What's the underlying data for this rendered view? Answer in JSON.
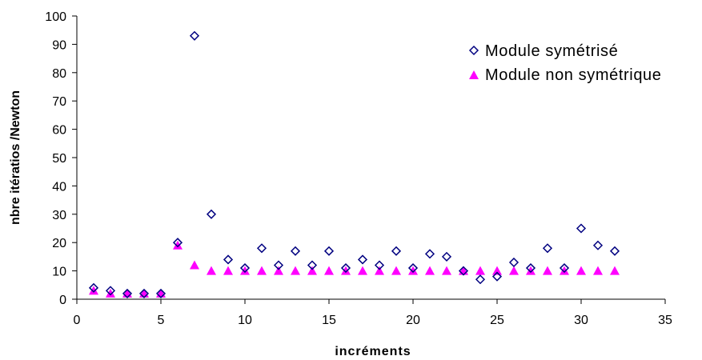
{
  "chart_data": {
    "type": "scatter",
    "title": "",
    "xlabel": "incréments",
    "ylabel": "nbre itératios /Newton",
    "xlim": [
      0,
      35
    ],
    "ylim": [
      0,
      100
    ],
    "xticks": [
      0,
      5,
      10,
      15,
      20,
      25,
      30,
      35
    ],
    "yticks": [
      0,
      10,
      20,
      30,
      40,
      50,
      60,
      70,
      80,
      90,
      100
    ],
    "grid": false,
    "legend_position": "top-right",
    "series": [
      {
        "name": "Module symétrisé",
        "marker": "diamond-open",
        "color": "#000080",
        "x": [
          1,
          2,
          3,
          4,
          5,
          6,
          7,
          8,
          9,
          10,
          11,
          12,
          13,
          14,
          15,
          16,
          17,
          18,
          19,
          20,
          21,
          22,
          23,
          24,
          25,
          26,
          27,
          28,
          29,
          30,
          31,
          32
        ],
        "y": [
          4,
          3,
          2,
          2,
          2,
          20,
          93,
          30,
          14,
          11,
          18,
          12,
          17,
          12,
          17,
          11,
          14,
          12,
          17,
          11,
          16,
          15,
          10,
          7,
          8,
          13,
          11,
          18,
          11,
          25,
          19,
          17
        ]
      },
      {
        "name": "Module non symétrique",
        "marker": "triangle-filled",
        "color": "#FF00FF",
        "x": [
          1,
          2,
          3,
          4,
          5,
          6,
          7,
          8,
          9,
          10,
          11,
          12,
          13,
          14,
          15,
          16,
          17,
          18,
          19,
          20,
          21,
          22,
          23,
          24,
          25,
          26,
          27,
          28,
          29,
          30,
          31,
          32
        ],
        "y": [
          3,
          2,
          2,
          2,
          2,
          19,
          12,
          10,
          10,
          10,
          10,
          10,
          10,
          10,
          10,
          10,
          10,
          10,
          10,
          10,
          10,
          10,
          10,
          10,
          10,
          10,
          10,
          10,
          10,
          10,
          10,
          10
        ]
      }
    ]
  }
}
